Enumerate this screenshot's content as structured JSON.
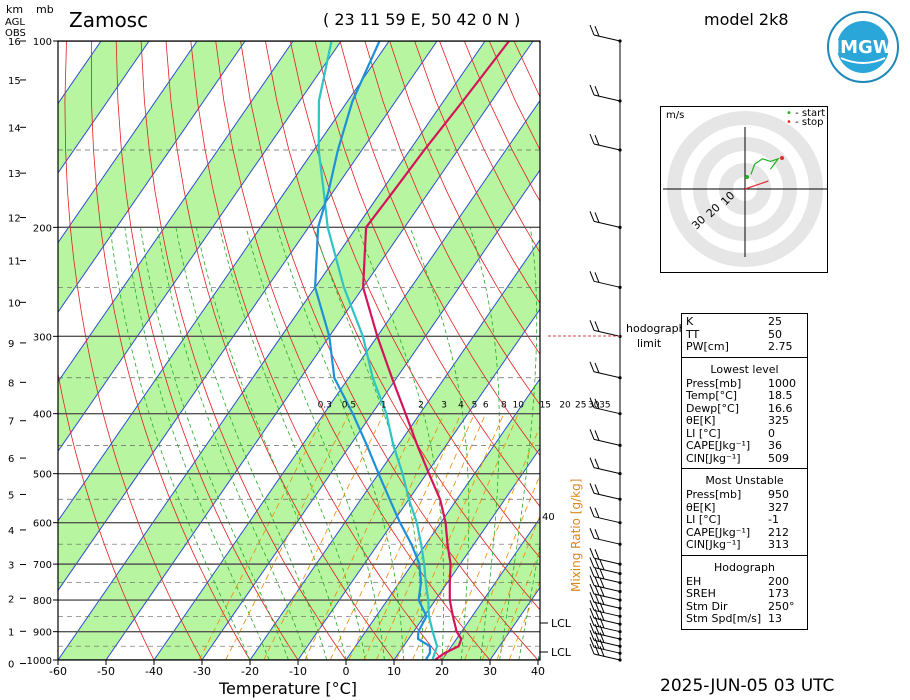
{
  "header": {
    "station": "Zamosc",
    "coords": "( 23 11 59 E, 50 42 0 N )",
    "model": "model 2k8",
    "datetime": "2025-JUN-05   03 UTC",
    "logo_text": "IMGW"
  },
  "left_axis": {
    "km_label": "km",
    "mb_label": "mb",
    "agl_label": "AGL",
    "obs_label": "OBS",
    "km_ticks": [
      "16",
      "15",
      "14",
      "13",
      "12",
      "11",
      "10",
      "9",
      "8",
      "7",
      "6",
      "5",
      "4",
      "3",
      "2",
      "1",
      "0"
    ],
    "mb_ticks": [
      "100",
      "200",
      "300",
      "400",
      "500",
      "600",
      "700",
      "800",
      "900",
      "1000"
    ]
  },
  "x_axis": {
    "label": "Temperature [°C]",
    "ticks": [
      "-60",
      "-50",
      "-40",
      "-30",
      "-20",
      "-10",
      "0",
      "10",
      "20",
      "30",
      "40"
    ]
  },
  "mixing_ratio": {
    "label": "Mixing Ratio [g/kg]",
    "values": [
      "0.3",
      "0.5",
      "1",
      "2",
      "3",
      "4",
      "5",
      "6",
      "8",
      "10",
      "15",
      "20",
      "25",
      "30",
      "35"
    ]
  },
  "annotations": {
    "lcl_upper": "LCL",
    "lcl_lower": "LCL",
    "forty": "40",
    "hodograph_limit_1": "hodograph",
    "hodograph_limit_2": "limit"
  },
  "hodograph": {
    "unit": "m/s",
    "legend_start": "- start",
    "legend_stop": "- stop",
    "rings": [
      "10",
      "20",
      "30"
    ]
  },
  "indices": {
    "top": [
      {
        "k": "K",
        "v": "25"
      },
      {
        "k": "TT",
        "v": "50"
      },
      {
        "k": "PW[cm]",
        "v": "2.75"
      }
    ],
    "lowest_title": "Lowest level",
    "lowest": [
      {
        "k": "Press[mb]",
        "v": "1000"
      },
      {
        "k": "Temp[°C]",
        "v": "18.5"
      },
      {
        "k": "Dewp[°C]",
        "v": "16.6"
      },
      {
        "k": "θE[K]",
        "v": "325"
      },
      {
        "k": "LI [°C]",
        "v": "0"
      },
      {
        "k": "CAPE[Jkg⁻¹]",
        "v": "36"
      },
      {
        "k": "CIN[Jkg⁻¹]",
        "v": "509"
      }
    ],
    "unstable_title": "Most Unstable",
    "unstable": [
      {
        "k": "Press[mb]",
        "v": "950"
      },
      {
        "k": "θE[K]",
        "v": "327"
      },
      {
        "k": "LI [°C]",
        "v": "-1"
      },
      {
        "k": "CAPE[Jkg⁻¹]",
        "v": "212"
      },
      {
        "k": "CIN[Jkg⁻¹]",
        "v": "313"
      }
    ],
    "hodo_title": "Hodograph",
    "hodo": [
      {
        "k": "EH",
        "v": "200"
      },
      {
        "k": "SREH",
        "v": "173"
      },
      {
        "k": "Stm Dir",
        "v": "250°"
      },
      {
        "k": "Stm Spd[m/s]",
        "v": "13"
      }
    ]
  },
  "colors": {
    "temperature": "#d4145a",
    "dewpoint": "#1e90d8",
    "parcel": "#2ec4c4",
    "isotherm": "#2a4fd0",
    "dry_adiabat": "#e02020",
    "moist_adiabat": "#22aa22",
    "mixing": "#f08a00",
    "green_band": "#b7f5a0"
  },
  "chart_data": {
    "type": "line",
    "title": "Zamosc",
    "xlabel": "Temperature [°C]",
    "ylabel": "mb",
    "x_range": [
      -60,
      40
    ],
    "pressure_levels": [
      1000,
      975,
      950,
      925,
      900,
      850,
      800,
      750,
      700,
      650,
      600,
      550,
      500,
      450,
      400,
      350,
      300,
      250,
      200,
      175,
      150,
      125,
      100
    ],
    "series": [
      {
        "values": [
          18.5,
          19.5,
          21.5,
          21.0,
          19.0,
          16.0,
          13.0,
          10.5,
          8.0,
          4.5,
          1.0,
          -3.5,
          -9.5,
          -16.0,
          -23.0,
          -31.0,
          -40.0,
          -50.0,
          -58.0,
          -57.5,
          -57.0,
          -56.0,
          -55.0
        ]
      },
      {
        "values": [
          16.6,
          16.5,
          15.5,
          12.0,
          11.0,
          10.5,
          6.5,
          4.5,
          1.5,
          -3.0,
          -8.5,
          -14.0,
          -20.0,
          -26.5,
          -34.0,
          -43.0,
          -50.0,
          -60.0,
          -68.0,
          -71.0,
          -75.0,
          -79.0,
          -82.0
        ]
      },
      {
        "values": [
          18.0,
          17.5,
          17.0,
          15.5,
          14.0,
          11.0,
          8.5,
          5.5,
          2.5,
          -1.0,
          -5.0,
          -10.0,
          -15.0,
          -21.0,
          -27.0,
          -35.0,
          -43.0,
          -54.0,
          -66.0,
          -72.0,
          -79.0,
          -86.0,
          -92.0
        ]
      }
    ],
    "wind_levels_mb": [
      1000,
      975,
      950,
      925,
      900,
      875,
      850,
      825,
      800,
      775,
      750,
      725,
      700,
      650,
      600,
      550,
      500,
      450,
      400,
      350,
      300,
      250,
      200,
      150,
      125,
      100
    ],
    "hodograph_points": [
      [
        1,
        1
      ],
      [
        2,
        5
      ],
      [
        4,
        7
      ],
      [
        6,
        6
      ],
      [
        8,
        7
      ],
      [
        7,
        5
      ],
      [
        6,
        3
      ]
    ],
    "storm_motion": [
      13,
      5
    ]
  }
}
